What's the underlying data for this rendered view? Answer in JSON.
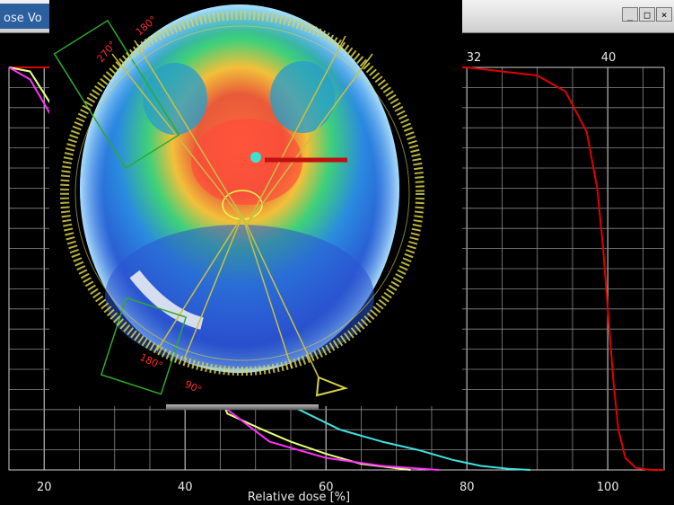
{
  "window": {
    "title": "ose Vo",
    "controls": [
      "_",
      "□",
      "×"
    ]
  },
  "chart_data": {
    "type": "line",
    "xlabel": "Relative dose [%]",
    "ylabel": "",
    "x_ticks": [
      20,
      40,
      60,
      80,
      100
    ],
    "x_ticks_top": [
      32,
      40
    ],
    "xlim": [
      15,
      108
    ],
    "ylim": [
      0,
      100
    ],
    "grid": true,
    "series": [
      {
        "color": "#e00000",
        "x": [
          15,
          40,
          60,
          80,
          90,
          94,
          97,
          98.5,
          99.3,
          100,
          100.8,
          101.5,
          102.5,
          104,
          106,
          108
        ],
        "y": [
          100,
          100,
          100,
          100,
          98,
          94,
          84,
          70,
          56,
          40,
          22,
          10,
          3,
          0.5,
          0,
          0
        ]
      },
      {
        "color": "#40e0e0",
        "x": [
          15,
          18,
          22,
          40,
          55,
          62,
          68,
          73,
          78,
          82,
          86,
          89
        ],
        "y": [
          100,
          99,
          88,
          40,
          16,
          10,
          7,
          5,
          2.5,
          1,
          0.3,
          0
        ]
      },
      {
        "color": "#e6ff7a",
        "x": [
          15,
          18,
          22,
          40,
          46,
          51,
          55,
          60,
          65,
          72
        ],
        "y": [
          100,
          99,
          88,
          40,
          14,
          10,
          7,
          4,
          1.5,
          0
        ]
      },
      {
        "color": "#ff30ff",
        "x": [
          15,
          18,
          22,
          40,
          46,
          52,
          60,
          68,
          76
        ],
        "y": [
          100,
          97,
          85,
          40,
          15,
          7,
          3,
          1,
          0
        ]
      }
    ]
  },
  "ct_overlay": {
    "field_labels": [
      "270°",
      "180°",
      "180°",
      "90°"
    ],
    "colors": {
      "arc": "#d9d24a",
      "field": "#2faa2a",
      "beam_line": "#c9c040",
      "high_dose": "#ff5a3a",
      "mid_dose": "#37d27a",
      "low_dose": "#2a6af0",
      "marker": "#c01010"
    }
  }
}
